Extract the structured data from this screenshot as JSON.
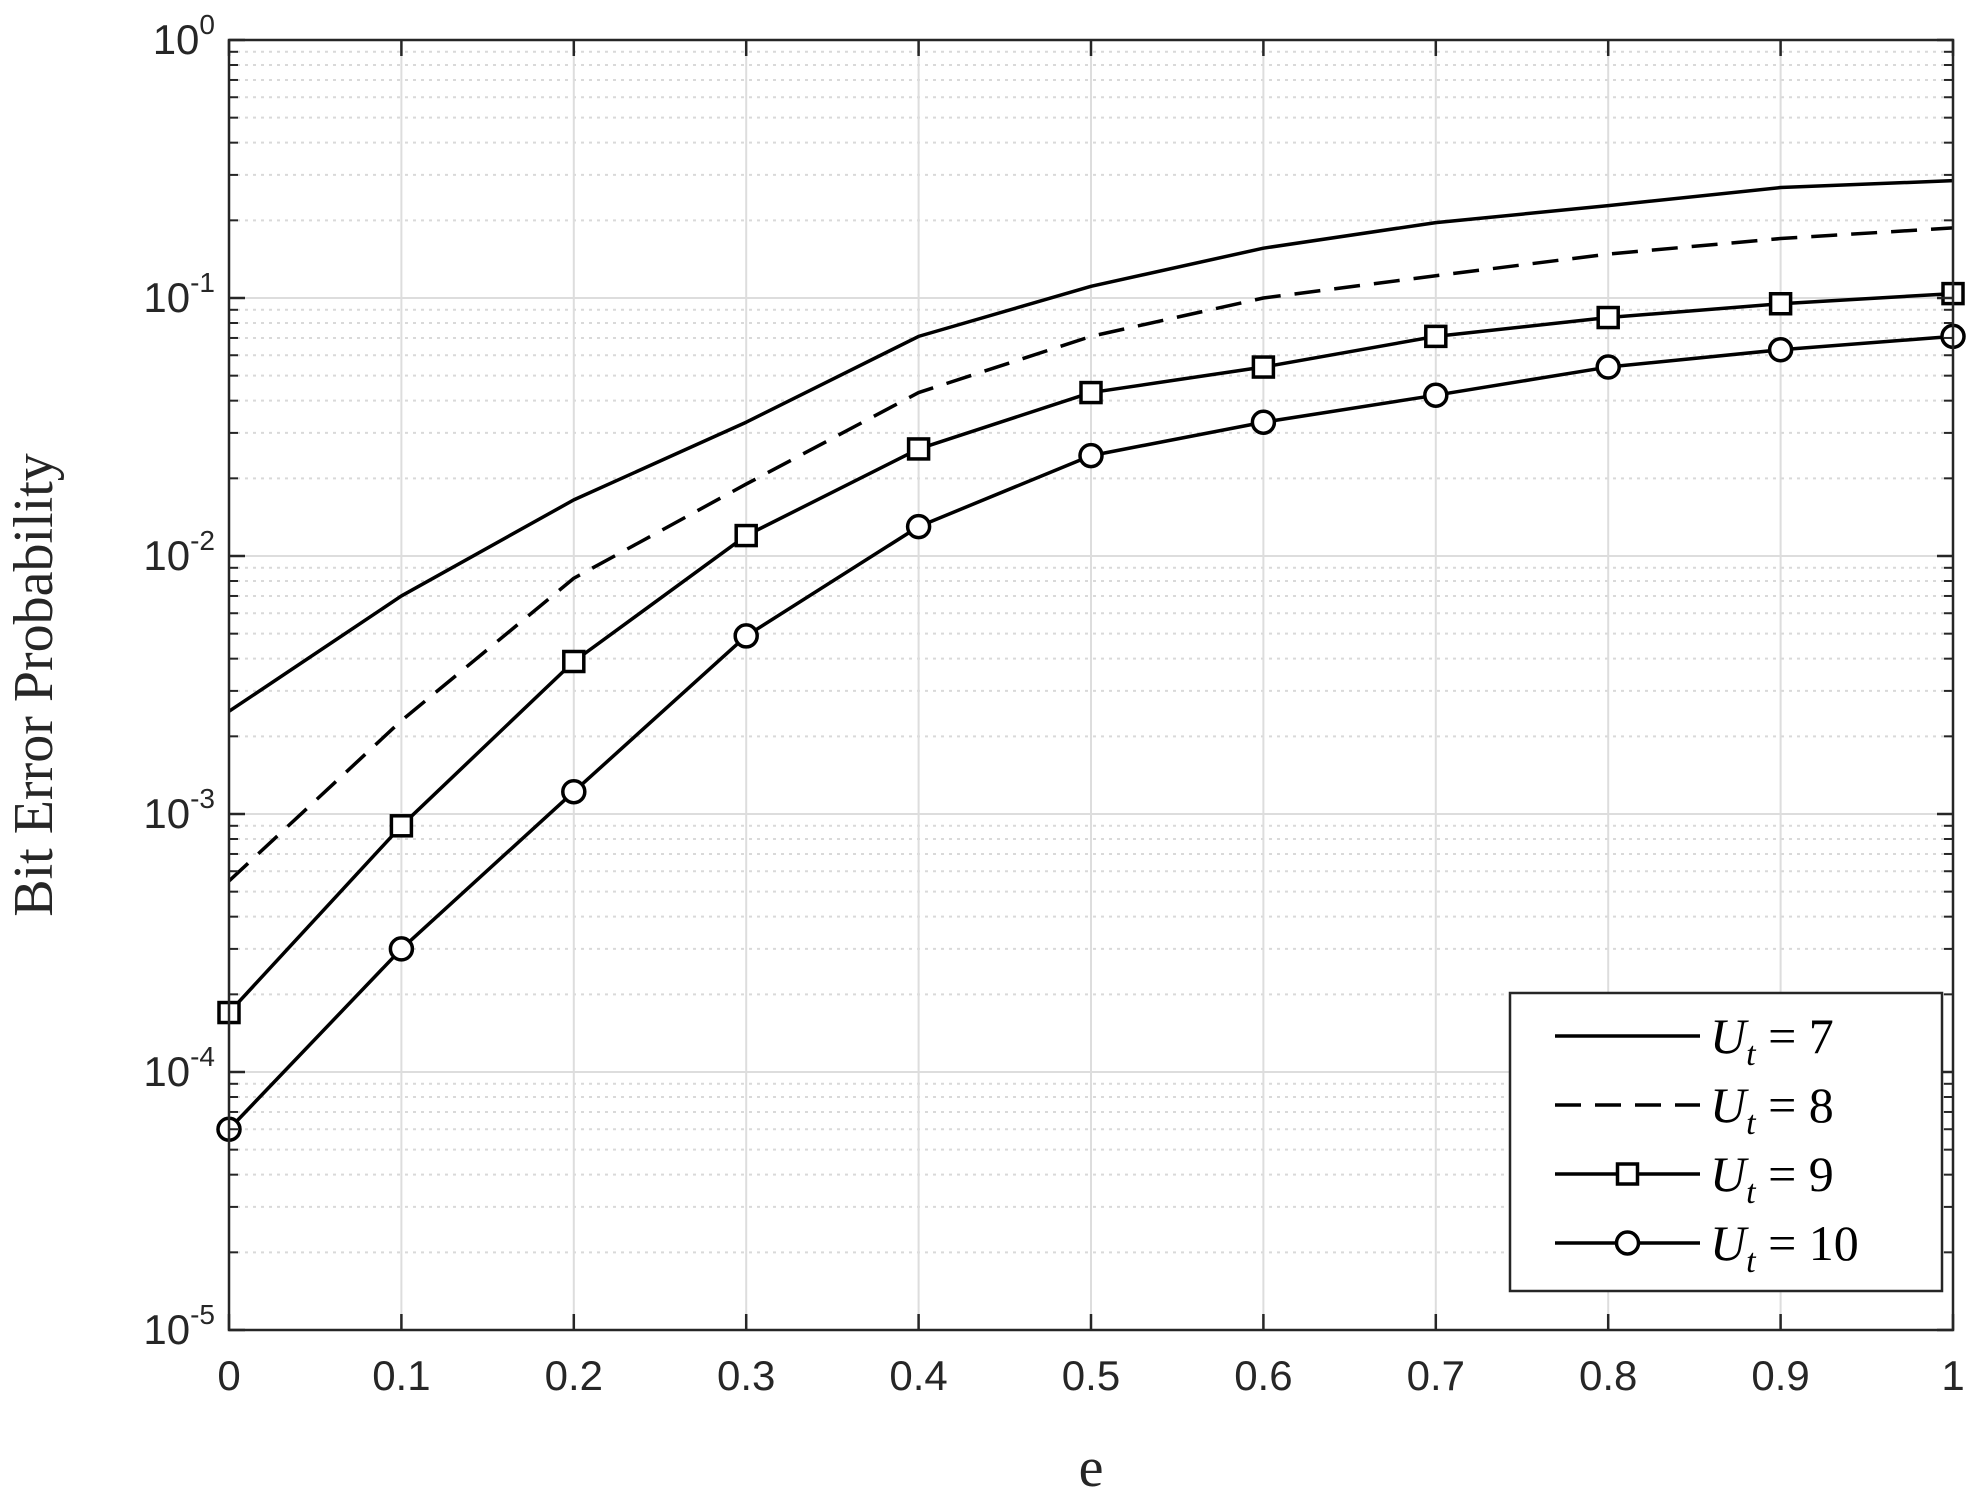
{
  "chart_data": {
    "type": "line",
    "title": "",
    "xlabel": "e",
    "ylabel": "Bit Error Probability",
    "xlim": [
      0,
      1
    ],
    "ylim": [
      1e-05,
      1
    ],
    "yscale": "log",
    "grid": true,
    "minor_grid": true,
    "legend_position": "bottom-right",
    "x_ticks": [
      {
        "value": 0,
        "label": "0"
      },
      {
        "value": 0.1,
        "label": "0.1"
      },
      {
        "value": 0.2,
        "label": "0.2"
      },
      {
        "value": 0.3,
        "label": "0.3"
      },
      {
        "value": 0.4,
        "label": "0.4"
      },
      {
        "value": 0.5,
        "label": "0.5"
      },
      {
        "value": 0.6,
        "label": "0.6"
      },
      {
        "value": 0.7,
        "label": "0.7"
      },
      {
        "value": 0.8,
        "label": "0.8"
      },
      {
        "value": 0.9,
        "label": "0.9"
      },
      {
        "value": 1,
        "label": "1"
      }
    ],
    "y_ticks": [
      {
        "value": 1,
        "base": "10",
        "exponent": "0"
      },
      {
        "value": 0.1,
        "base": "10",
        "exponent": "-1"
      },
      {
        "value": 0.01,
        "base": "10",
        "exponent": "-2"
      },
      {
        "value": 0.001,
        "base": "10",
        "exponent": "-3"
      },
      {
        "value": 0.0001,
        "base": "10",
        "exponent": "-4"
      },
      {
        "value": 1e-05,
        "base": "10",
        "exponent": "-5"
      }
    ],
    "x": [
      0,
      0.1,
      0.2,
      0.3,
      0.4,
      0.5,
      0.6,
      0.7,
      0.8,
      0.9,
      1
    ],
    "series": [
      {
        "legend_main": "U",
        "legend_sub": "t",
        "legend_rest": " = 7",
        "line_style": "solid",
        "marker": "none",
        "color": "#000000",
        "values": [
          0.0025,
          0.007,
          0.0165,
          0.033,
          0.071,
          0.111,
          0.156,
          0.196,
          0.228,
          0.268,
          0.285
        ]
      },
      {
        "legend_main": "U",
        "legend_sub": "t",
        "legend_rest": " = 8",
        "line_style": "dashed",
        "marker": "none",
        "color": "#000000",
        "values": [
          0.00055,
          0.0023,
          0.0082,
          0.019,
          0.043,
          0.071,
          0.1,
          0.122,
          0.148,
          0.17,
          0.187
        ]
      },
      {
        "legend_main": "U",
        "legend_sub": "t",
        "legend_rest": " = 9",
        "line_style": "solid",
        "marker": "square",
        "color": "#000000",
        "values": [
          0.00017,
          0.0009,
          0.0039,
          0.012,
          0.026,
          0.043,
          0.054,
          0.071,
          0.084,
          0.095,
          0.104
        ]
      },
      {
        "legend_main": "U",
        "legend_sub": "t",
        "legend_rest": " = 10",
        "line_style": "solid",
        "marker": "circle",
        "color": "#000000",
        "values": [
          6e-05,
          0.0003,
          0.00122,
          0.0049,
          0.013,
          0.0245,
          0.033,
          0.042,
          0.054,
          0.063,
          0.071
        ]
      }
    ]
  }
}
